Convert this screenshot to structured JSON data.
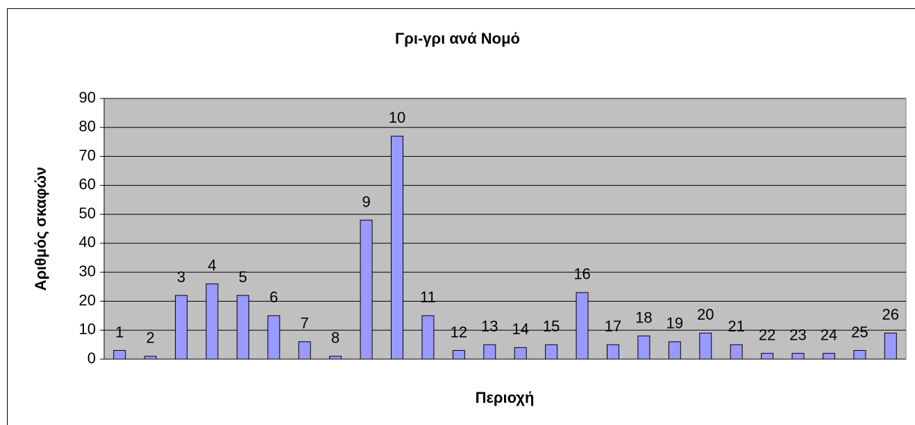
{
  "chart_data": {
    "type": "bar",
    "title": "Γρι-γρι ανά Νομό",
    "xlabel": "Περιοχή",
    "ylabel": "Αριθμός σκαφών",
    "categories": [
      "1",
      "2",
      "3",
      "4",
      "5",
      "6",
      "7",
      "8",
      "9",
      "10",
      "11",
      "12",
      "13",
      "14",
      "15",
      "16",
      "17",
      "18",
      "19",
      "20",
      "21",
      "22",
      "23",
      "24",
      "25",
      "26"
    ],
    "values": [
      3,
      1,
      22,
      26,
      22,
      15,
      6,
      1,
      48,
      77,
      15,
      3,
      5,
      4,
      5,
      23,
      5,
      8,
      6,
      9,
      5,
      2,
      2,
      2,
      3,
      9
    ],
    "color": "#9999ff",
    "background": "#c0c0c0",
    "ylim": [
      0,
      90
    ],
    "yticks": [
      0,
      10,
      20,
      30,
      40,
      50,
      60,
      70,
      80,
      90
    ],
    "grid": true
  }
}
